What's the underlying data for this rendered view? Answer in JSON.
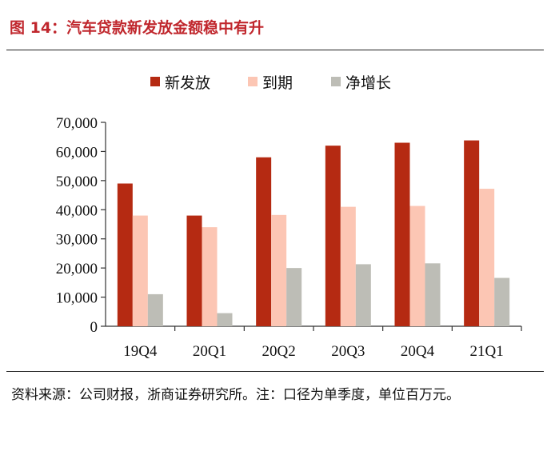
{
  "title": "图 14：汽车贷款新发放金额稳中有升",
  "source": "资料来源：公司财报，浙商证券研究所。注：口径为单季度，单位百万元。",
  "chart_data": {
    "type": "bar",
    "categories": [
      "19Q4",
      "20Q1",
      "20Q2",
      "20Q3",
      "20Q4",
      "21Q1"
    ],
    "series": [
      {
        "name": "新发放",
        "color": "#b52a12",
        "values": [
          49000,
          38000,
          58000,
          62000,
          63000,
          63800
        ]
      },
      {
        "name": "到期",
        "color": "#fcc6b4",
        "values": [
          38000,
          34000,
          38200,
          41000,
          41300,
          47200
        ]
      },
      {
        "name": "净增长",
        "color": "#bdbdb6",
        "values": [
          11000,
          4500,
          20000,
          21300,
          21600,
          16600
        ]
      }
    ],
    "ylim": [
      0,
      70000
    ],
    "yticks": [
      "0",
      "10,000",
      "20,000",
      "30,000",
      "40,000",
      "50,000",
      "60,000",
      "70,000"
    ],
    "legend_position": "top-center",
    "grid": false
  }
}
